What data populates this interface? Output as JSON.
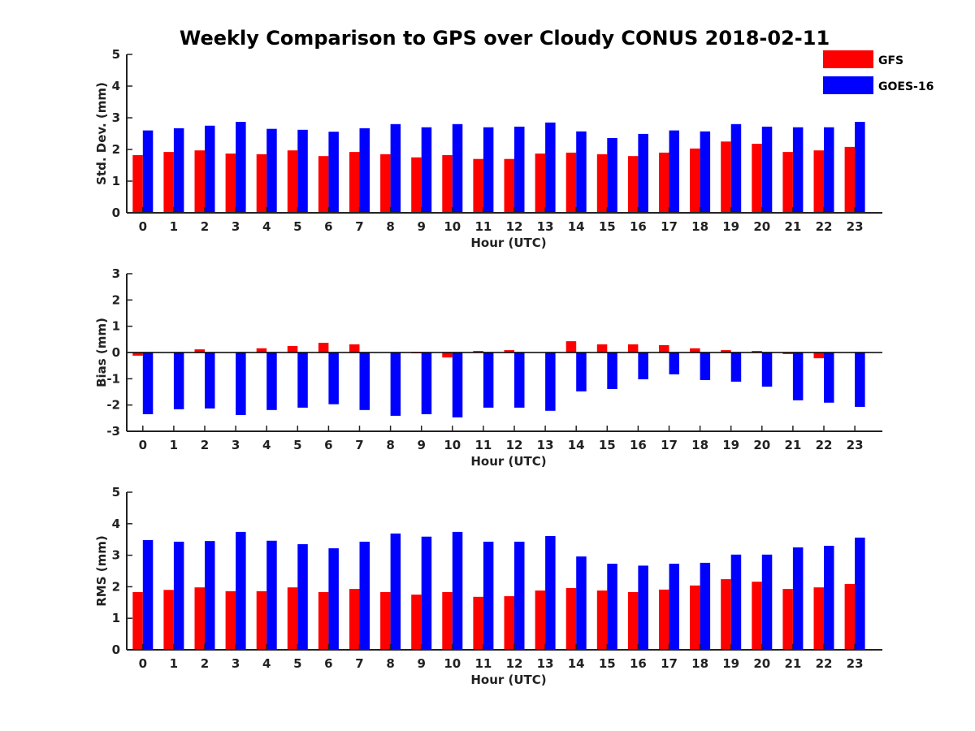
{
  "title": "Weekly Comparison to GPS over Cloudy CONUS 2018-02-11",
  "legend": [
    {
      "name": "GFS",
      "color": "#ff0000"
    },
    {
      "name": "GOES-16",
      "color": "#0000ff"
    }
  ],
  "chart_data": [
    {
      "type": "bar",
      "xlabel": "Hour (UTC)",
      "ylabel": "Std. Dev. (mm)",
      "ylim": [
        0,
        5
      ],
      "yticks": [
        0,
        1,
        2,
        3,
        4,
        5
      ],
      "categories": [
        "0",
        "1",
        "2",
        "3",
        "4",
        "5",
        "6",
        "7",
        "8",
        "9",
        "10",
        "11",
        "12",
        "13",
        "14",
        "15",
        "16",
        "17",
        "18",
        "19",
        "20",
        "21",
        "22",
        "23"
      ],
      "series": [
        {
          "name": "GFS",
          "color": "#ff0000",
          "values": [
            1.82,
            1.92,
            1.97,
            1.87,
            1.85,
            1.97,
            1.79,
            1.92,
            1.85,
            1.75,
            1.82,
            1.7,
            1.7,
            1.87,
            1.9,
            1.85,
            1.79,
            1.9,
            2.03,
            2.25,
            2.18,
            1.92,
            1.97,
            2.08
          ]
        },
        {
          "name": "GOES-16",
          "color": "#0000ff",
          "values": [
            2.6,
            2.67,
            2.75,
            2.87,
            2.65,
            2.62,
            2.56,
            2.67,
            2.8,
            2.7,
            2.8,
            2.7,
            2.72,
            2.85,
            2.57,
            2.36,
            2.49,
            2.6,
            2.57,
            2.8,
            2.72,
            2.7,
            2.7,
            2.87
          ]
        }
      ]
    },
    {
      "type": "bar",
      "xlabel": "Hour (UTC)",
      "ylabel": "Bias (mm)",
      "ylim": [
        -3,
        3
      ],
      "yticks": [
        -3,
        -2,
        -1,
        0,
        1,
        2,
        3
      ],
      "categories": [
        "0",
        "1",
        "2",
        "3",
        "4",
        "5",
        "6",
        "7",
        "8",
        "9",
        "10",
        "11",
        "12",
        "13",
        "14",
        "15",
        "16",
        "17",
        "18",
        "19",
        "20",
        "21",
        "22",
        "23"
      ],
      "series": [
        {
          "name": "GFS",
          "color": "#ff0000",
          "values": [
            -0.12,
            0.0,
            0.12,
            0.0,
            0.16,
            0.25,
            0.37,
            0.31,
            0.0,
            -0.03,
            -0.19,
            0.06,
            0.09,
            0.0,
            0.43,
            0.31,
            0.31,
            0.28,
            0.16,
            0.09,
            0.06,
            -0.06,
            -0.22,
            0.0
          ]
        },
        {
          "name": "GOES-16",
          "color": "#0000ff",
          "values": [
            -2.35,
            -2.16,
            -2.13,
            -2.38,
            -2.19,
            -2.1,
            -1.97,
            -2.19,
            -2.41,
            -2.35,
            -2.47,
            -2.1,
            -2.1,
            -2.22,
            -1.48,
            -1.39,
            -1.02,
            -0.83,
            -1.05,
            -1.11,
            -1.3,
            -1.82,
            -1.91,
            -2.07
          ]
        }
      ]
    },
    {
      "type": "bar",
      "xlabel": "Hour (UTC)",
      "ylabel": "RMS (mm)",
      "ylim": [
        0,
        5
      ],
      "yticks": [
        0,
        1,
        2,
        3,
        4,
        5
      ],
      "categories": [
        "0",
        "1",
        "2",
        "3",
        "4",
        "5",
        "6",
        "7",
        "8",
        "9",
        "10",
        "11",
        "12",
        "13",
        "14",
        "15",
        "16",
        "17",
        "18",
        "19",
        "20",
        "21",
        "22",
        "23"
      ],
      "series": [
        {
          "name": "GFS",
          "color": "#ff0000",
          "values": [
            1.83,
            1.9,
            1.98,
            1.86,
            1.86,
            1.98,
            1.83,
            1.93,
            1.83,
            1.75,
            1.83,
            1.68,
            1.7,
            1.88,
            1.96,
            1.88,
            1.83,
            1.91,
            2.04,
            2.24,
            2.16,
            1.93,
            1.98,
            2.09
          ]
        },
        {
          "name": "GOES-16",
          "color": "#0000ff",
          "values": [
            3.48,
            3.43,
            3.45,
            3.74,
            3.46,
            3.35,
            3.22,
            3.43,
            3.69,
            3.59,
            3.74,
            3.43,
            3.43,
            3.61,
            2.96,
            2.73,
            2.67,
            2.73,
            2.76,
            3.02,
            3.02,
            3.25,
            3.3,
            3.56
          ]
        }
      ]
    }
  ]
}
